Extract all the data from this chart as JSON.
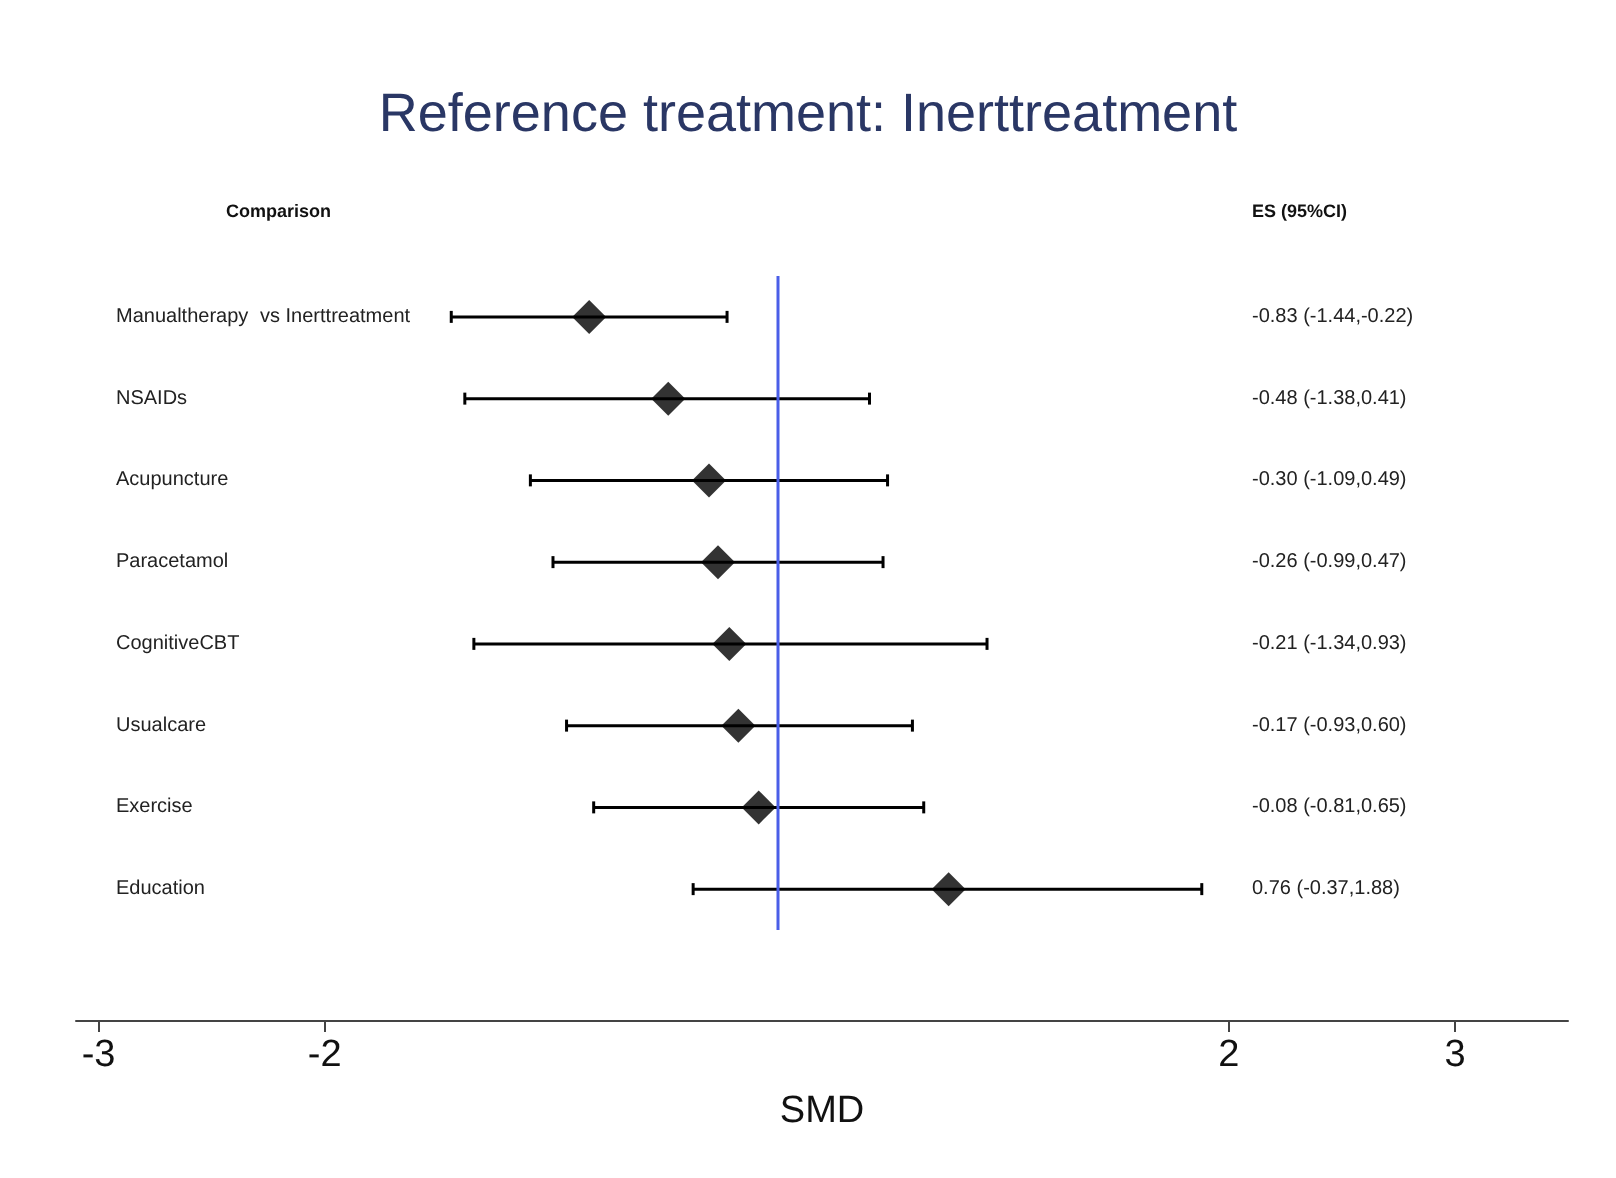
{
  "chart_data": {
    "type": "scatter",
    "orientation": "horizontal",
    "title": "Reference treatment: Inerttreatment",
    "xlabel": "SMD",
    "categories": [
      "Manualtherapy",
      "NSAIDs",
      "Acupuncture",
      "Paracetamol",
      "CognitiveCBT",
      "Usualcare",
      "Exercise",
      "Education"
    ],
    "values": [
      -0.83,
      -0.48,
      -0.3,
      -0.26,
      -0.21,
      -0.17,
      -0.08,
      0.76
    ],
    "errors": [
      [
        -1.44,
        -0.22
      ],
      [
        -1.38,
        0.41
      ],
      [
        -1.09,
        0.49
      ],
      [
        -0.99,
        0.47
      ],
      [
        -1.34,
        0.93
      ],
      [
        -0.93,
        0.6
      ],
      [
        -0.81,
        0.65
      ],
      [
        -0.37,
        1.88
      ]
    ],
    "color": "#000000",
    "marker": "diamond",
    "xlim": [
      -3.1,
      3.5
    ],
    "xticks": [
      -3,
      -2,
      2,
      3
    ],
    "ref_lines": [
      {
        "axis": "x",
        "value": 0,
        "color": "#4a5ee8"
      }
    ],
    "annotations": [
      "Comparison",
      "ES (95%CI)",
      "vs Inerttreatment",
      "-0.83 (-1.44,-0.22)",
      "-0.48 (-1.38,0.41)",
      "-0.30 (-1.09,0.49)",
      "-0.26 (-0.99,0.47)",
      "-0.21 (-1.34,0.93)",
      "-0.17 (-0.93,0.60)",
      "-0.08 (-0.81,0.65)",
      "0.76 (-0.37,1.88)"
    ]
  }
}
